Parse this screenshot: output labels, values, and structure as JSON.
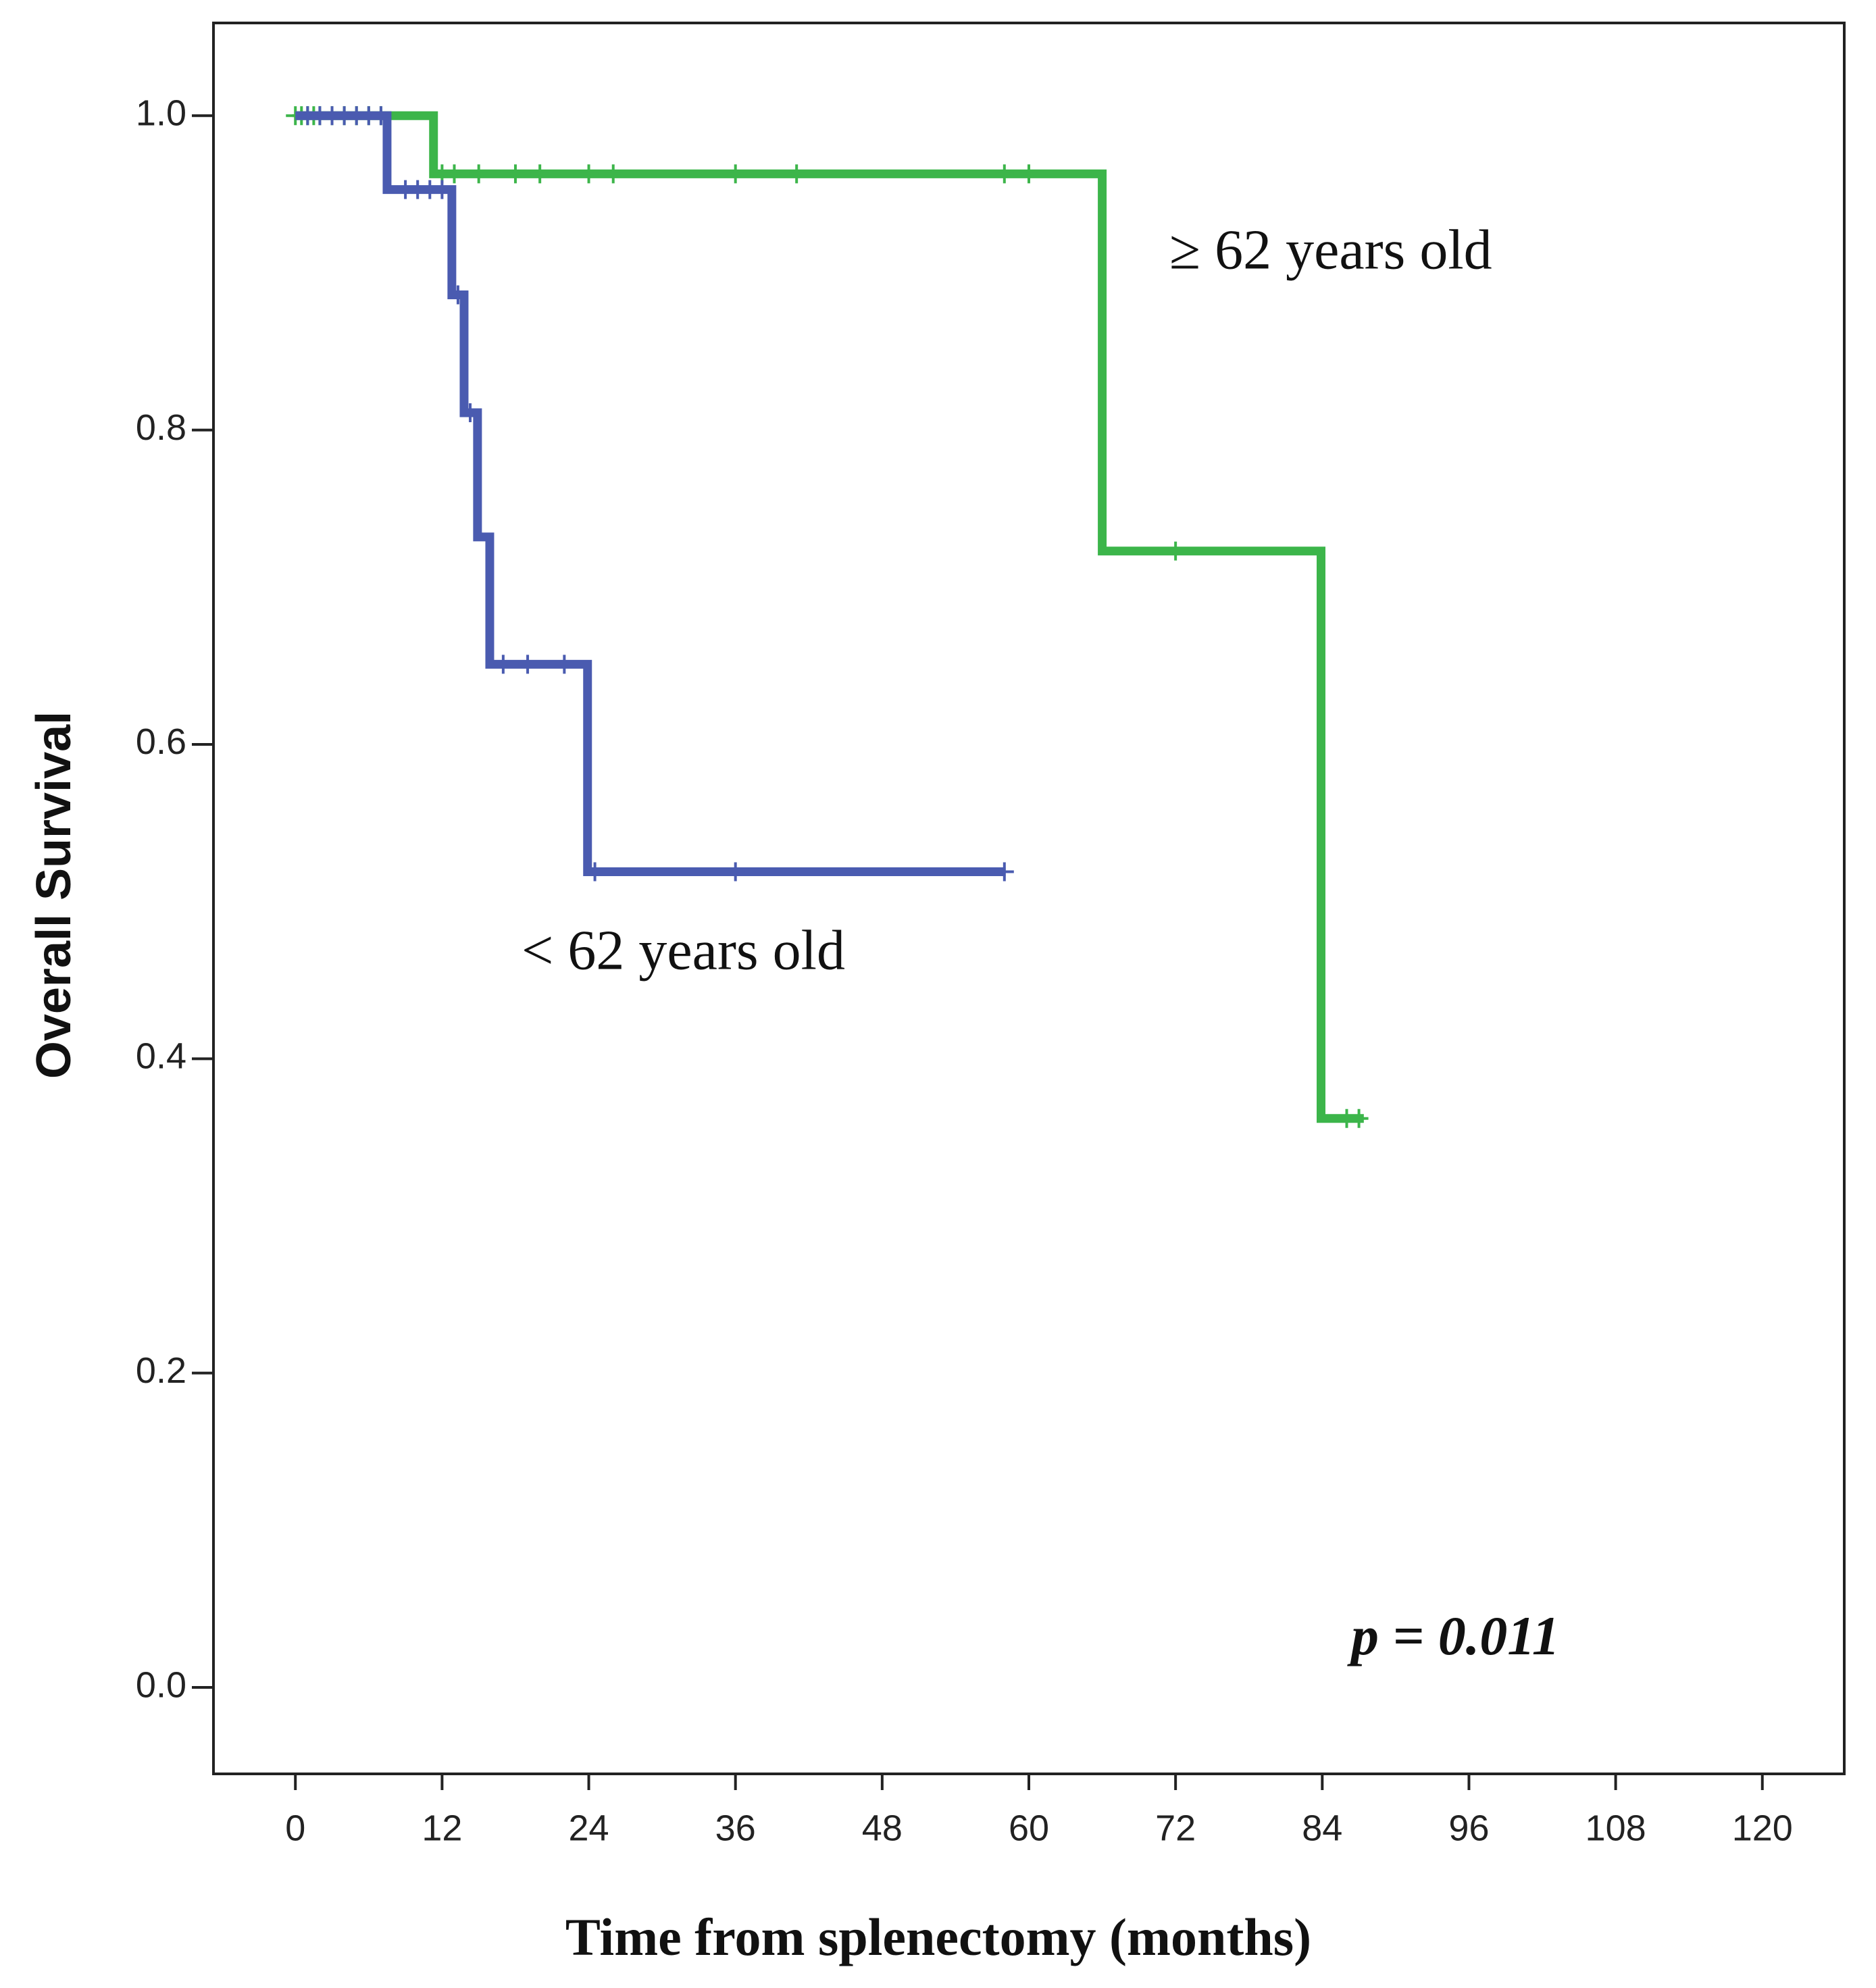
{
  "chart_data": {
    "type": "step",
    "x_label": "Time from splenectomy (months)",
    "y_label": "Overall Survival",
    "annotation": "p = 0.011",
    "xlim": [
      -6.7,
      126.7
    ],
    "ylim": [
      -0.055,
      1.059
    ],
    "xticks": [
      0,
      12,
      24,
      36,
      48,
      60,
      72,
      84,
      96,
      108,
      120
    ],
    "yticks": [
      {
        "value": 0,
        "label": "0.0"
      },
      {
        "value": 0.2,
        "label": "0.2"
      },
      {
        "value": 0.4,
        "label": "0.4"
      },
      {
        "value": 0.6,
        "label": "0.6"
      },
      {
        "value": 0.8,
        "label": "0.8"
      },
      {
        "value": 1,
        "label": "1.0"
      }
    ],
    "series": [
      {
        "name": "≥ 62 years old",
        "color": "#3cb54a",
        "x": [
          0,
          11.3,
          66,
          83.9,
          87.4
        ],
        "values": [
          1,
          0.963,
          0.723,
          0.362,
          0.362
        ],
        "censored": [
          0,
          0.5,
          1,
          1.5,
          2,
          3,
          4,
          5,
          6,
          7,
          12,
          13,
          15,
          18,
          20,
          24,
          26,
          36,
          41,
          58,
          60,
          72,
          86,
          87
        ]
      },
      {
        "name": "< 62 years old",
        "color": "#4a5bb0",
        "x": [
          0,
          7.5,
          12.8,
          13.8,
          14.9,
          15.9,
          23.9,
          58.1
        ],
        "values": [
          1,
          0.953,
          0.886,
          0.811,
          0.732,
          0.651,
          0.519,
          0.519
        ],
        "censored": [
          1,
          2,
          3,
          4,
          5,
          6,
          7,
          9,
          10,
          11,
          12,
          13.3,
          14.3,
          17,
          19,
          22,
          24.5,
          36,
          58
        ]
      }
    ]
  }
}
